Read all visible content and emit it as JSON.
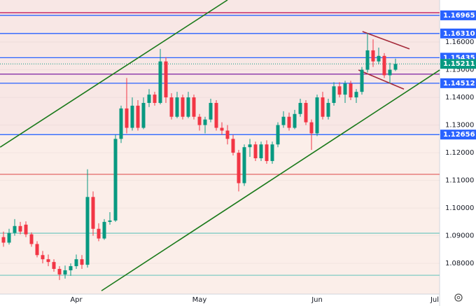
{
  "chart_data": {
    "type": "candlestick",
    "categories": [
      null,
      null,
      null,
      null,
      null,
      null,
      null,
      null,
      null,
      null,
      null,
      null,
      null,
      "Apr",
      null,
      null,
      null,
      null,
      null,
      null,
      null,
      null,
      null,
      null,
      null,
      null,
      null,
      null,
      null,
      null,
      null,
      null,
      null,
      null,
      null,
      "May",
      null,
      null,
      null,
      null,
      null,
      null,
      null,
      null,
      null,
      null,
      null,
      null,
      null,
      null,
      null,
      null,
      null,
      null,
      null,
      null,
      "Jun",
      null,
      null,
      null,
      null,
      null,
      null,
      null,
      null,
      null,
      null,
      null,
      null,
      null,
      null,
      null,
      null,
      null,
      null,
      null,
      null,
      "Jul"
    ],
    "open": [
      1.0895,
      1.0875,
      1.091,
      1.0935,
      1.094,
      1.0905,
      1.087,
      1.083,
      1.0815,
      1.0805,
      1.078,
      1.076,
      1.0775,
      1.079,
      1.0815,
      1.0795,
      1.104,
      1.0925,
      1.089,
      1.095,
      1.0955,
      1.125,
      1.136,
      1.129,
      1.137,
      1.129,
      1.138,
      1.141,
      1.138,
      1.153,
      1.14,
      1.133,
      1.14,
      1.133,
      1.14,
      1.133,
      1.13,
      1.132,
      1.138,
      1.129,
      1.128,
      1.125,
      1.12,
      1.109,
      1.122,
      1.123,
      1.118,
      1.123,
      1.117,
      1.123,
      1.13,
      1.133,
      1.129,
      1.134,
      1.138,
      1.131,
      1.127,
      1.14,
      1.133,
      1.138,
      1.144,
      1.141,
      1.145,
      1.14,
      1.142,
      1.15,
      1.157,
      1.153,
      1.155,
      1.148,
      1.15,
      null,
      null,
      null,
      null,
      null,
      null,
      null
    ],
    "high": [
      1.0915,
      1.0925,
      1.096,
      1.095,
      1.0952,
      1.0912,
      1.088,
      1.0845,
      1.0832,
      1.0815,
      1.079,
      1.0792,
      1.08,
      1.0832,
      1.083,
      1.114,
      1.106,
      1.0945,
      1.096,
      1.0985,
      1.1265,
      1.137,
      1.147,
      1.14,
      1.139,
      1.14,
      1.143,
      1.142,
      1.1575,
      1.1545,
      1.1415,
      1.142,
      1.141,
      1.142,
      1.141,
      1.134,
      1.133,
      1.1395,
      1.139,
      1.131,
      1.13,
      1.1265,
      1.121,
      1.123,
      1.125,
      1.124,
      1.124,
      1.1245,
      1.124,
      1.131,
      1.135,
      1.1345,
      1.1355,
      1.1395,
      1.139,
      1.132,
      1.141,
      1.142,
      1.1395,
      1.1455,
      1.1455,
      1.146,
      1.146,
      1.143,
      1.151,
      1.1632,
      1.161,
      1.158,
      1.156,
      1.1525,
      1.154,
      null,
      null,
      null,
      null,
      null,
      null,
      null
    ],
    "low": [
      1.086,
      1.0868,
      1.09,
      1.0905,
      1.0895,
      1.086,
      1.0822,
      1.08,
      1.079,
      1.077,
      1.074,
      1.0745,
      1.0755,
      1.078,
      1.078,
      1.0785,
      1.09,
      1.088,
      1.0885,
      1.094,
      1.095,
      1.1235,
      1.127,
      1.128,
      1.128,
      1.1285,
      1.1365,
      1.137,
      1.1375,
      1.138,
      1.132,
      1.1325,
      1.132,
      1.1325,
      1.132,
      1.128,
      1.127,
      1.131,
      1.128,
      1.1265,
      1.123,
      1.119,
      1.106,
      1.108,
      1.1185,
      1.117,
      1.117,
      1.116,
      1.116,
      1.122,
      1.129,
      1.128,
      1.1285,
      1.133,
      1.13,
      1.121,
      1.126,
      1.132,
      1.132,
      1.137,
      1.14,
      1.138,
      1.139,
      1.138,
      1.141,
      1.149,
      1.151,
      1.152,
      1.147,
      1.145,
      1.1495,
      null,
      null,
      null,
      null,
      null,
      null,
      null
    ],
    "close": [
      1.0875,
      1.091,
      1.0935,
      1.0915,
      1.0905,
      1.087,
      1.083,
      1.0815,
      1.0805,
      1.078,
      1.076,
      1.0775,
      1.079,
      1.0815,
      1.0795,
      1.104,
      1.0925,
      1.089,
      1.095,
      1.0955,
      1.125,
      1.136,
      1.129,
      1.137,
      1.129,
      1.138,
      1.141,
      1.138,
      1.153,
      1.14,
      1.133,
      1.14,
      1.133,
      1.14,
      1.133,
      1.13,
      1.132,
      1.138,
      1.129,
      1.128,
      1.125,
      1.12,
      1.109,
      1.122,
      1.123,
      1.118,
      1.123,
      1.117,
      1.123,
      1.13,
      1.133,
      1.129,
      1.134,
      1.138,
      1.131,
      1.127,
      1.14,
      1.133,
      1.138,
      1.144,
      1.141,
      1.145,
      1.14,
      1.142,
      1.15,
      1.157,
      1.153,
      1.155,
      1.148,
      1.15,
      1.1521,
      null,
      null,
      null,
      null,
      null,
      null,
      null
    ],
    "up_color": "#089981",
    "down_color": "#f23645",
    "ylim": [
      1.0689,
      1.1752
    ],
    "yticks": [
      {
        "value": 1.16,
        "label": "1.16000"
      },
      {
        "value": 1.15,
        "label": "1.15000"
      },
      {
        "value": 1.14,
        "label": "1.14000"
      },
      {
        "value": 1.13,
        "label": "1.13000"
      },
      {
        "value": 1.12,
        "label": "1.12000"
      },
      {
        "value": 1.11,
        "label": "1.11000"
      },
      {
        "value": 1.1,
        "label": "1.10000"
      },
      {
        "value": 1.09,
        "label": "1.09000"
      },
      {
        "value": 1.08,
        "label": "1.08000"
      }
    ],
    "levels": [
      {
        "value": 1.1706,
        "color": "#c2185b"
      },
      {
        "value": 1.16965,
        "label": "1.16965",
        "color": "#2962ff"
      },
      {
        "value": 1.1631,
        "label": "1.16310",
        "color": "#2962ff"
      },
      {
        "value": 1.15435,
        "label": "1.15435",
        "color": "#2962ff"
      },
      {
        "value": 1.15211,
        "label": "1.15211",
        "color": "#089981",
        "style": "dotted"
      },
      {
        "value": 1.1484,
        "color": "#7b1fa2"
      },
      {
        "value": 1.14512,
        "label": "1.14512",
        "color": "#2962ff"
      },
      {
        "value": 1.12656,
        "label": "1.12656",
        "color": "#2962ff"
      },
      {
        "value": 1.1122,
        "color": "#e57373"
      },
      {
        "value": 1.0909,
        "color": "#80cbc4"
      },
      {
        "value": 1.0757,
        "color": "#80cbc4"
      }
    ],
    "trendlines": [
      {
        "x": [
          -0.6,
          40
        ],
        "y": [
          1.122,
          1.1752
        ],
        "color": "#1b7a1b"
      },
      {
        "x": [
          17.5,
          77.9
        ],
        "y": [
          1.0701,
          1.1499
        ],
        "color": "#1b7a1b"
      },
      {
        "x": [
          64.1,
          72.5
        ],
        "y": [
          1.1638,
          1.1575
        ],
        "color": "#a52a3a"
      },
      {
        "x": [
          63.4,
          71.5
        ],
        "y": [
          1.1499,
          1.143
        ],
        "color": "#a52a3a"
      }
    ]
  }
}
